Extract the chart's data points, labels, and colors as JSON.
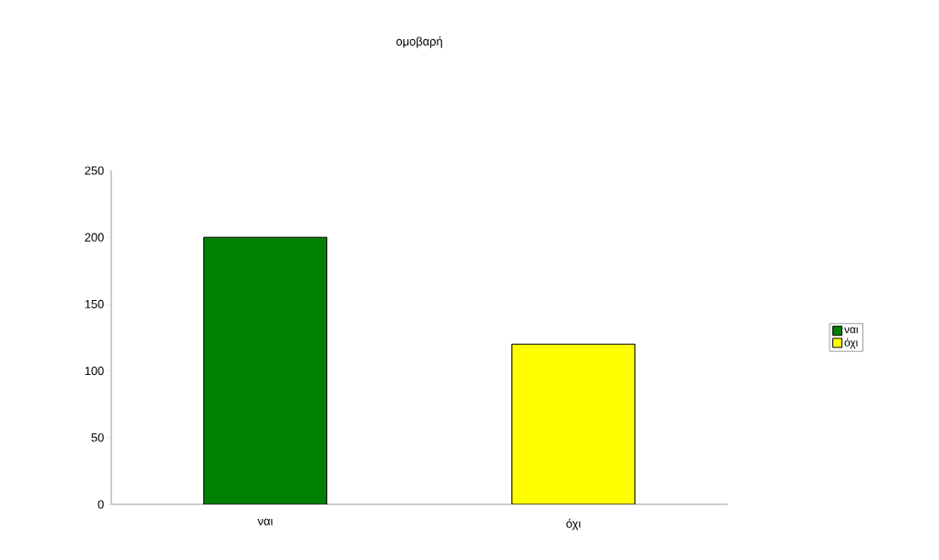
{
  "chart_data": {
    "type": "bar",
    "title": "ομοβαρή",
    "categories": [
      "ναι",
      "όχι"
    ],
    "series": [
      {
        "name": "ναι",
        "color": "#008000",
        "values": [
          200,
          null
        ]
      },
      {
        "name": "όχι",
        "color": "#ffff00",
        "values": [
          null,
          120
        ]
      }
    ],
    "ylim": [
      0,
      250
    ],
    "yticks": [
      0,
      50,
      100,
      150,
      200,
      250
    ],
    "legend": "right"
  }
}
